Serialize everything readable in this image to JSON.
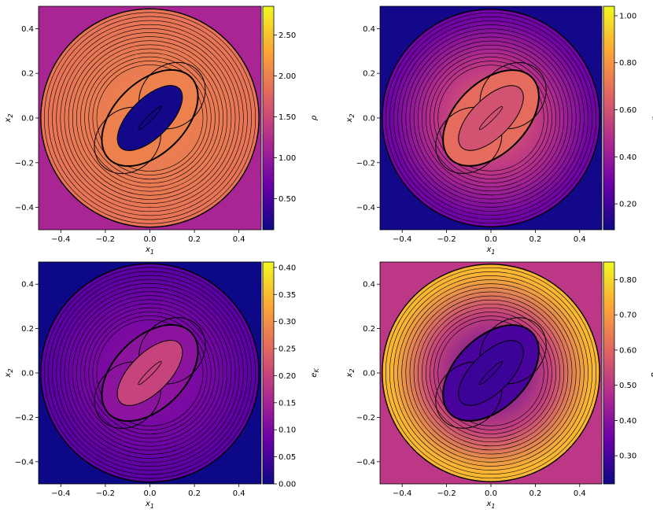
{
  "colormap": {
    "name": "plasma",
    "stops": [
      "#0d0887",
      "#6a00a8",
      "#b12a90",
      "#e16462",
      "#fca636",
      "#f0f921"
    ]
  },
  "chart_data": [
    {
      "type": "heatmap",
      "id": "rho-a",
      "xlabel": "x_1",
      "ylabel": "x_2",
      "cbar_label": "ρ",
      "cbar_ticks": [
        "0.50",
        "1.00",
        "1.50",
        "2.00",
        "2.50"
      ],
      "cbar_tick_values": [
        0.5,
        1.0,
        1.5,
        2.0,
        2.5
      ],
      "cbar_range": [
        0.12,
        2.85
      ],
      "xlim": [
        -0.5,
        0.5
      ],
      "ylim": [
        -0.5,
        0.5
      ],
      "xticks": [
        "−0.4",
        "−0.2",
        "0.0",
        "0.2",
        "0.4"
      ],
      "xtick_values": [
        -0.4,
        -0.2,
        0.0,
        0.2,
        0.4
      ],
      "yticks": [
        "0.4",
        "0.2",
        "0.0",
        "−0.2",
        "−0.4"
      ],
      "ytick_values": [
        0.4,
        0.2,
        0.0,
        -0.2,
        -0.4
      ],
      "background_value": 1.15,
      "blast_radius": 0.49,
      "outer_ring_value": 1.9,
      "inner_value": 2.0,
      "cavity_value": 0.15
    },
    {
      "type": "heatmap",
      "id": "rho-b",
      "xlabel": "x_1",
      "ylabel": "x_2",
      "cbar_label": "p",
      "cbar_ticks": [
        "0.20",
        "0.40",
        "0.60",
        "0.80",
        "1.00"
      ],
      "cbar_tick_values": [
        0.2,
        0.4,
        0.6,
        0.8,
        1.0
      ],
      "cbar_range": [
        0.09,
        1.04
      ],
      "xlim": [
        -0.5,
        0.5
      ],
      "ylim": [
        -0.5,
        0.5
      ],
      "xticks": [
        "−0.4",
        "−0.2",
        "0.0",
        "0.2",
        "0.4"
      ],
      "xtick_values": [
        -0.4,
        -0.2,
        0.0,
        0.2,
        0.4
      ],
      "yticks": [
        "0.4",
        "0.2",
        "0.0",
        "−0.2",
        "−0.4"
      ],
      "ytick_values": [
        0.4,
        0.2,
        0.0,
        -0.2,
        -0.4
      ],
      "background_value": 0.1,
      "blast_radius": 0.49,
      "outer_ring_value": 0.3,
      "inner_value": 0.68,
      "cavity_value": 0.6
    },
    {
      "type": "heatmap",
      "id": "ek",
      "xlabel": "x_1",
      "ylabel": "x_2",
      "cbar_label": "e_K",
      "cbar_ticks": [
        "0.00",
        "0.05",
        "0.10",
        "0.15",
        "0.20",
        "0.25",
        "0.30",
        "0.35",
        "0.40"
      ],
      "cbar_tick_values": [
        0.0,
        0.05,
        0.1,
        0.15,
        0.2,
        0.25,
        0.3,
        0.35,
        0.4
      ],
      "cbar_range": [
        0.0,
        0.41
      ],
      "xlim": [
        -0.5,
        0.5
      ],
      "ylim": [
        -0.5,
        0.5
      ],
      "xticks": [
        "−0.4",
        "−0.2",
        "0.0",
        "0.2",
        "0.4"
      ],
      "xtick_values": [
        -0.4,
        -0.2,
        0.0,
        0.2,
        0.4
      ],
      "yticks": [
        "0.4",
        "0.2",
        "0.0",
        "−0.2",
        "−0.4"
      ],
      "ytick_values": [
        0.4,
        0.2,
        0.0,
        -0.2,
        -0.4
      ],
      "background_value": 0.0,
      "blast_radius": 0.49,
      "outer_ring_value": 0.07,
      "inner_value": 0.12,
      "cavity_value": 0.2
    },
    {
      "type": "heatmap",
      "id": "pb",
      "xlabel": "x_1",
      "ylabel": "x_2",
      "cbar_label": "P_B",
      "cbar_ticks": [
        "0.30",
        "0.40",
        "0.50",
        "0.60",
        "0.70",
        "0.80"
      ],
      "cbar_tick_values": [
        0.3,
        0.4,
        0.5,
        0.6,
        0.7,
        0.8
      ],
      "cbar_range": [
        0.22,
        0.85
      ],
      "xlim": [
        -0.5,
        0.5
      ],
      "ylim": [
        -0.5,
        0.5
      ],
      "xticks": [
        "−0.4",
        "−0.2",
        "0.0",
        "0.2",
        "0.4"
      ],
      "xtick_values": [
        -0.4,
        -0.2,
        0.0,
        0.2,
        0.4
      ],
      "yticks": [
        "0.4",
        "0.2",
        "0.0",
        "−0.2",
        "−0.4"
      ],
      "ytick_values": [
        0.4,
        0.2,
        0.0,
        -0.2,
        -0.4
      ],
      "background_value": 0.5,
      "blast_radius": 0.49,
      "outer_ring_value": 0.75,
      "inner_value": 0.3,
      "cavity_value": 0.28
    }
  ]
}
